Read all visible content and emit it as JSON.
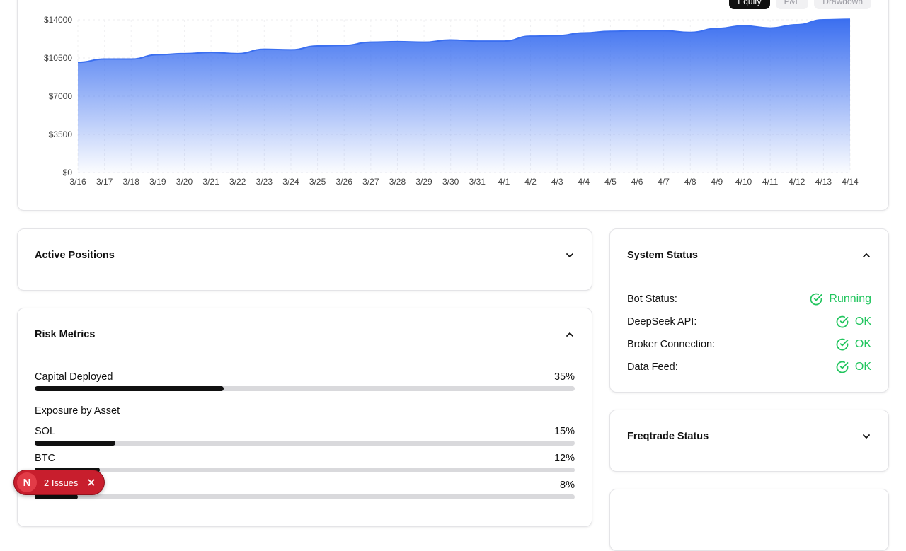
{
  "chart": {
    "tabs": [
      "Equity",
      "P&L",
      "Drawdown"
    ],
    "active_tab": "Equity"
  },
  "chart_data": {
    "type": "area",
    "title": "",
    "xlabel": "",
    "ylabel": "",
    "categories": [
      "3/16",
      "3/17",
      "3/18",
      "3/19",
      "3/20",
      "3/21",
      "3/22",
      "3/23",
      "3/24",
      "3/25",
      "3/26",
      "3/27",
      "3/28",
      "3/29",
      "3/30",
      "3/31",
      "4/1",
      "4/2",
      "4/3",
      "4/4",
      "4/5",
      "4/6",
      "4/7",
      "4/8",
      "4/9",
      "4/10",
      "4/11",
      "4/12",
      "4/13",
      "4/14"
    ],
    "values": [
      10100,
      10400,
      10400,
      10800,
      10900,
      11000,
      10900,
      11300,
      11250,
      11600,
      11650,
      11950,
      12000,
      11950,
      12150,
      12050,
      12050,
      12500,
      12550,
      12800,
      12950,
      13000,
      13000,
      12850,
      13200,
      13450,
      13250,
      13550,
      14000,
      14050
    ],
    "ylim": [
      0,
      14000
    ],
    "yticks": [
      0,
      3500,
      7000,
      10500,
      14000
    ],
    "ytick_labels": [
      "$0",
      "$3500",
      "$7000",
      "$10500",
      "$14000"
    ],
    "grid": true,
    "colors": {
      "fill_top": "#3b6ff0",
      "line": "#3b6ff0"
    }
  },
  "active_positions": {
    "title": "Active Positions"
  },
  "risk": {
    "title": "Risk Metrics",
    "capital": {
      "label": "Capital Deployed",
      "value_text": "35%",
      "value": 35
    },
    "exposure_title": "Exposure by Asset",
    "assets": [
      {
        "label": "SOL",
        "value_text": "15%",
        "value": 15
      },
      {
        "label": "BTC",
        "value_text": "12%",
        "value": 12
      },
      {
        "label": "",
        "value_text": "8%",
        "value": 8
      }
    ]
  },
  "system": {
    "title": "System Status",
    "rows": [
      {
        "label": "Bot Status:",
        "value": "Running"
      },
      {
        "label": "DeepSeek API:",
        "value": "OK"
      },
      {
        "label": "Broker Connection:",
        "value": "OK"
      },
      {
        "label": "Data Feed:",
        "value": "OK"
      }
    ]
  },
  "freqtrade": {
    "title": "Freqtrade Status"
  },
  "issues": {
    "logo": "N",
    "label": "2 Issues"
  }
}
